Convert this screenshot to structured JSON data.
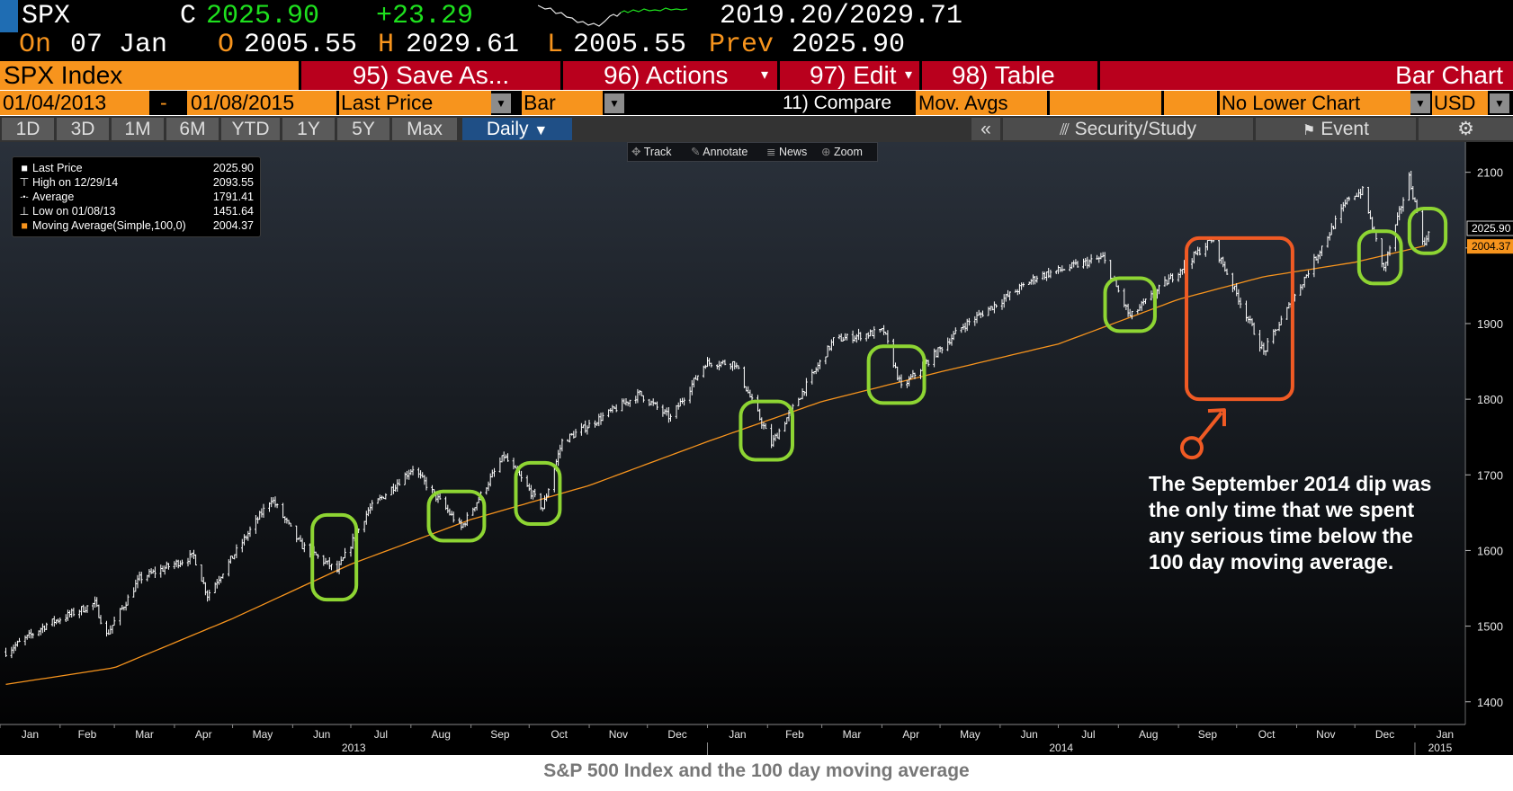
{
  "quote": {
    "ticker": "SPX",
    "close_label": "C",
    "close": "2025.90",
    "change": "+23.29",
    "range": "2019.20/2029.71",
    "on_label": "On",
    "date": "07 Jan",
    "open_label": "O",
    "open": "2005.55",
    "high_label": "H",
    "high": "2029.61",
    "low_label": "L",
    "low": "2005.55",
    "prev_label": "Prev",
    "prev": "2025.90"
  },
  "function_bar": {
    "security": "SPX Index",
    "save_as": "95) Save As...",
    "actions": "96) Actions",
    "edit": "97) Edit",
    "table": "98) Table",
    "view": "Bar Chart"
  },
  "settings_bar": {
    "start_date": "01/04/2013",
    "dash": "-",
    "end_date": "01/08/2015",
    "field": "Last Price",
    "chart_style": "Bar",
    "compare": "11) Compare",
    "mov_avgs": "Mov. Avgs",
    "lower_chart": "No Lower Chart",
    "currency": "USD"
  },
  "timeframe_bar": {
    "buttons": [
      "1D",
      "3D",
      "1M",
      "6M",
      "YTD",
      "1Y",
      "5Y",
      "Max"
    ],
    "period": "Daily",
    "collapse": "«",
    "security_study": "Security/Study",
    "event": "Event"
  },
  "chart_tools": [
    "Track",
    "Annotate",
    "News",
    "Zoom"
  ],
  "legend": [
    {
      "symbol": "■",
      "label": "Last Price",
      "value": "2025.90"
    },
    {
      "symbol": "⊤",
      "label": "High on 12/29/14",
      "value": "2093.55"
    },
    {
      "symbol": "-•-",
      "label": "Average",
      "value": "1791.41"
    },
    {
      "symbol": "⊥",
      "label": "Low on 01/08/13",
      "value": "1451.64"
    },
    {
      "symbol": "■",
      "label": "Moving Average(Simple,100,0)",
      "value": "2004.37"
    }
  ],
  "annotation": "The September 2014 dip was the only time that we spent any serious time below the 100 day moving average.",
  "caption": "S&P 500 Index and the 100 day moving average",
  "colors": {
    "ticker_white": "#ffffff",
    "price_green": "#1ee01e",
    "date_orange": "#f7941d",
    "function_bar_orange": "#f7941d",
    "function_bar_red": "#b9001d",
    "price_bars": "#ffffff",
    "moving_average": "#f7941d",
    "highlight_green": "#8ed533",
    "highlight_red": "#f05a24"
  },
  "chart_data": {
    "type": "bar",
    "x_axis": {
      "months": [
        "Jan",
        "Feb",
        "Mar",
        "Apr",
        "May",
        "Jun",
        "Jul",
        "Aug",
        "Sep",
        "Oct",
        "Nov",
        "Dec",
        "Jan",
        "Feb",
        "Mar",
        "Apr",
        "May",
        "Jun",
        "Jul",
        "Aug",
        "Sep",
        "Oct",
        "Nov",
        "Dec",
        "Jan"
      ],
      "years": [
        "2013",
        "2014",
        "2015"
      ]
    },
    "y_axis": {
      "ticks": [
        1400,
        1500,
        1600,
        1700,
        1800,
        1900,
        2000,
        2100
      ],
      "range": [
        1370,
        2140
      ]
    },
    "last_price_label": "2025.90",
    "moving_average_label": "2004.37",
    "last_price_value": 2025.9,
    "moving_average_value": 2004.37,
    "price_anchors": [
      [
        "2013-01-04",
        1466
      ],
      [
        "2013-01-25",
        1502
      ],
      [
        "2013-02-19",
        1530
      ],
      [
        "2013-02-25",
        1488
      ],
      [
        "2013-03-14",
        1563
      ],
      [
        "2013-04-11",
        1593
      ],
      [
        "2013-04-18",
        1541
      ],
      [
        "2013-05-21",
        1669
      ],
      [
        "2013-06-05",
        1608
      ],
      [
        "2013-06-24",
        1573
      ],
      [
        "2013-07-10",
        1653
      ],
      [
        "2013-08-02",
        1709
      ],
      [
        "2013-08-27",
        1630
      ],
      [
        "2013-09-18",
        1725
      ],
      [
        "2013-10-08",
        1656
      ],
      [
        "2013-10-18",
        1744
      ],
      [
        "2013-11-27",
        1807
      ],
      [
        "2013-12-13",
        1775
      ],
      [
        "2013-12-31",
        1848
      ],
      [
        "2014-01-15",
        1848
      ],
      [
        "2014-02-03",
        1741
      ],
      [
        "2014-03-07",
        1878
      ],
      [
        "2014-04-02",
        1890
      ],
      [
        "2014-04-11",
        1815
      ],
      [
        "2014-05-13",
        1897
      ],
      [
        "2014-06-20",
        1962
      ],
      [
        "2014-07-24",
        1987
      ],
      [
        "2014-08-07",
        1909
      ],
      [
        "2014-09-18",
        2011
      ],
      [
        "2014-10-15",
        1862
      ],
      [
        "2014-11-28",
        2067
      ],
      [
        "2014-12-05",
        2075
      ],
      [
        "2014-12-16",
        1972
      ],
      [
        "2014-12-29",
        2093
      ],
      [
        "2015-01-06",
        2002
      ],
      [
        "2015-01-08",
        2025
      ]
    ],
    "moving_average_anchors": [
      [
        "2013-01-04",
        1423
      ],
      [
        "2013-03-01",
        1445
      ],
      [
        "2013-05-01",
        1510
      ],
      [
        "2013-07-01",
        1582
      ],
      [
        "2013-09-01",
        1641
      ],
      [
        "2013-11-01",
        1686
      ],
      [
        "2014-01-01",
        1744
      ],
      [
        "2014-03-01",
        1797
      ],
      [
        "2014-05-01",
        1836
      ],
      [
        "2014-07-01",
        1873
      ],
      [
        "2014-09-01",
        1932
      ],
      [
        "2014-10-15",
        1962
      ],
      [
        "2014-12-01",
        1981
      ],
      [
        "2015-01-08",
        2004
      ]
    ],
    "highlights": [
      {
        "kind": "green",
        "from": "2013-06-13",
        "to": "2013-07-02",
        "low": 1535,
        "high": 1647
      },
      {
        "kind": "green",
        "from": "2013-08-12",
        "to": "2013-09-06",
        "low": 1613,
        "high": 1678
      },
      {
        "kind": "green",
        "from": "2013-09-26",
        "to": "2013-10-15",
        "low": 1635,
        "high": 1716
      },
      {
        "kind": "green",
        "from": "2014-01-20",
        "to": "2014-02-12",
        "low": 1720,
        "high": 1797
      },
      {
        "kind": "green",
        "from": "2014-03-27",
        "to": "2014-04-21",
        "low": 1795,
        "high": 1870
      },
      {
        "kind": "green",
        "from": "2014-07-27",
        "to": "2014-08-18",
        "low": 1890,
        "high": 1960
      },
      {
        "kind": "red",
        "from": "2014-09-07",
        "to": "2014-10-28",
        "low": 1800,
        "high": 2013
      },
      {
        "kind": "green",
        "from": "2014-12-05",
        "to": "2014-12-23",
        "low": 1953,
        "high": 2022
      },
      {
        "kind": "green",
        "from": "2014-12-31",
        "to": "2015-01-15",
        "low": 1993,
        "high": 2052
      }
    ]
  }
}
